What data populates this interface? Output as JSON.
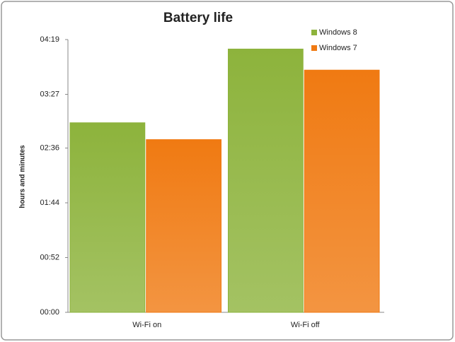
{
  "chart_data": {
    "type": "bar",
    "title": "Battery life",
    "y_label": "hours and minutes",
    "categories": [
      "Wi-Fi on",
      "Wi-Fi off"
    ],
    "series": [
      {
        "name": "Windows 8",
        "color": "#8db33c",
        "values": [
          180,
          250
        ]
      },
      {
        "name": "Windows 7",
        "color": "#f07a12",
        "values": [
          164,
          230
        ]
      }
    ],
    "ylim": [
      0,
      259
    ],
    "yticks": [
      {
        "value": 0,
        "label": "00:00"
      },
      {
        "value": 52,
        "label": "00:52"
      },
      {
        "value": 104,
        "label": "01:44"
      },
      {
        "value": 156,
        "label": "02:36"
      },
      {
        "value": 207,
        "label": "03:27"
      },
      {
        "value": 259,
        "label": "04:19"
      }
    ],
    "legend": "top-right"
  }
}
